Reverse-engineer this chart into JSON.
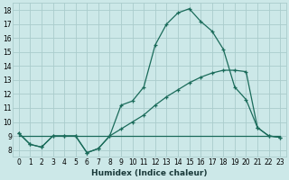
{
  "xlabel": "Humidex (Indice chaleur)",
  "bg_color": "#cce8e8",
  "grid_color": "#aacccc",
  "line_color": "#1a6b5a",
  "xlim": [
    -0.5,
    23.5
  ],
  "ylim": [
    7.5,
    18.5
  ],
  "xticks": [
    0,
    1,
    2,
    3,
    4,
    5,
    6,
    7,
    8,
    9,
    10,
    11,
    12,
    13,
    14,
    15,
    16,
    17,
    18,
    19,
    20,
    21,
    22,
    23
  ],
  "yticks": [
    8,
    9,
    10,
    11,
    12,
    13,
    14,
    15,
    16,
    17,
    18
  ],
  "line1_x": [
    0,
    1,
    2,
    3,
    4,
    5,
    6,
    7,
    8,
    9,
    10,
    11,
    12,
    13,
    14,
    15,
    16,
    17,
    18,
    19,
    20,
    21,
    22,
    23
  ],
  "line1_y": [
    9.2,
    8.4,
    8.2,
    9.0,
    9.0,
    9.0,
    7.8,
    8.1,
    9.0,
    11.2,
    11.5,
    12.5,
    15.5,
    17.0,
    17.8,
    18.1,
    17.2,
    16.5,
    15.2,
    12.5,
    11.6,
    9.6,
    9.0,
    8.9
  ],
  "line2_x": [
    0,
    1,
    2,
    3,
    4,
    5,
    6,
    7,
    8,
    9,
    10,
    11,
    12,
    13,
    14,
    15,
    16,
    17,
    18,
    19,
    20,
    21,
    22,
    23
  ],
  "line2_y": [
    9.2,
    8.4,
    8.2,
    9.0,
    9.0,
    9.0,
    7.8,
    8.1,
    9.0,
    9.5,
    10.0,
    10.5,
    11.2,
    11.8,
    12.3,
    12.8,
    13.2,
    13.5,
    13.7,
    13.7,
    13.6,
    9.6,
    9.0,
    8.9
  ],
  "line3_x": [
    0,
    23
  ],
  "line3_y": [
    9.0,
    9.0
  ],
  "marker": "+",
  "markersize": 3.5,
  "linewidth": 0.9,
  "tick_fontsize": 5.5,
  "xlabel_fontsize": 6.5,
  "xlabel_color": "#1a3a3a"
}
